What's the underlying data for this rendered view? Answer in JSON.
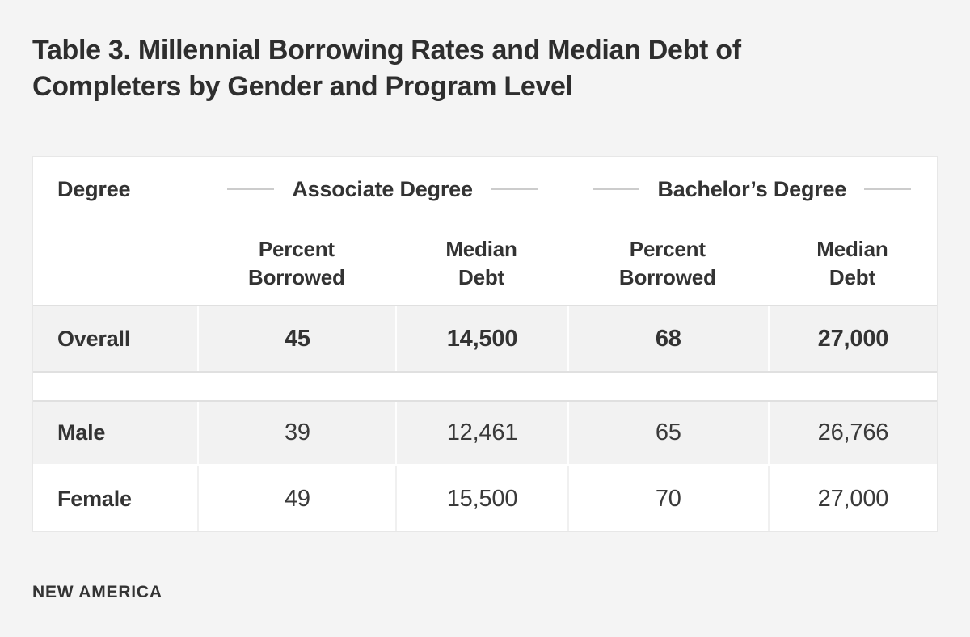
{
  "title": "Table 3. Millennial Borrowing Rates and Median Debt of\nCompleters by Gender and Program Level",
  "table": {
    "corner_label": "Degree",
    "groups": [
      {
        "label": "Associate Degree"
      },
      {
        "label": "Bachelor’s Degree"
      }
    ],
    "columns": [
      {
        "label": "Percent Borrowed"
      },
      {
        "label": "Median Debt"
      },
      {
        "label": "Percent Borrowed"
      },
      {
        "label": "Median Debt"
      }
    ],
    "rows": [
      {
        "label": "Overall",
        "values": [
          "45",
          "14,500",
          "68",
          "27,000"
        ],
        "emphasis": true
      },
      {
        "label": "Male",
        "values": [
          "39",
          "12,461",
          "65",
          "26,766"
        ],
        "emphasis": false
      },
      {
        "label": "Female",
        "values": [
          "49",
          "15,500",
          "70",
          "27,000"
        ],
        "emphasis": false
      }
    ]
  },
  "footer": {
    "brand": "NEW AMERICA"
  },
  "colors": {
    "page_background": "#f4f4f4",
    "panel_background": "#ffffff",
    "row_stripe": "#f2f2f2",
    "border": "#e0e0e0",
    "decorative_line": "#cccccc",
    "text": "#333333"
  },
  "chart_data": {
    "type": "table",
    "title": "Table 3. Millennial Borrowing Rates and Median Debt of Completers by Gender and Program Level",
    "column_groups": [
      "Associate Degree",
      "Bachelor’s Degree"
    ],
    "columns": [
      "Degree",
      "Associate Degree Percent Borrowed",
      "Associate Degree Median Debt",
      "Bachelor’s Degree Percent Borrowed",
      "Bachelor’s Degree Median Debt"
    ],
    "rows": [
      [
        "Overall",
        45,
        14500,
        68,
        27000
      ],
      [
        "Male",
        39,
        12461,
        65,
        26766
      ],
      [
        "Female",
        49,
        15500,
        70,
        27000
      ]
    ],
    "source": "NEW AMERICA"
  }
}
